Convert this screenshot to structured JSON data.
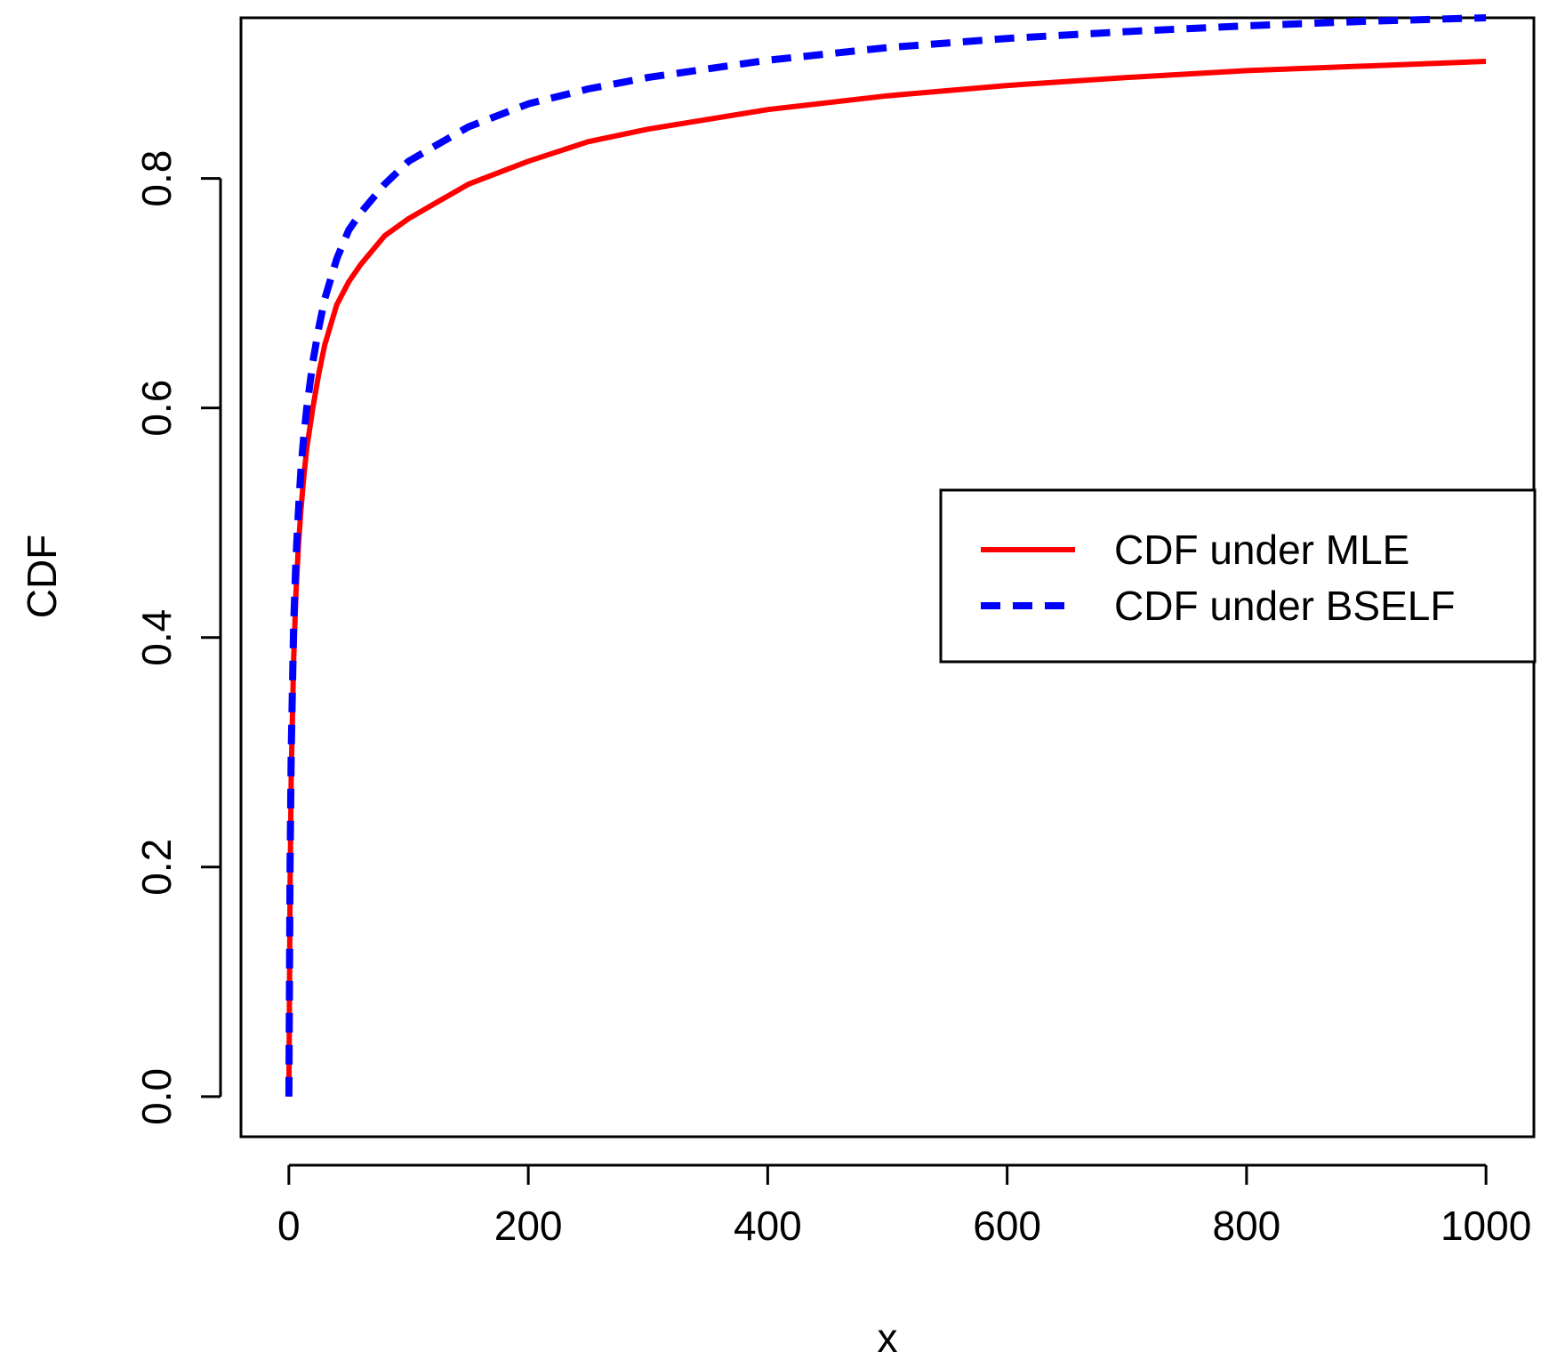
{
  "chart_data": {
    "type": "line",
    "title": "",
    "xlabel": "x",
    "ylabel": "CDF",
    "xlim": [
      -40,
      1040
    ],
    "ylim": [
      -0.035,
      0.94
    ],
    "x_ticks": [
      0,
      200,
      400,
      600,
      800,
      1000
    ],
    "x_tick_labels": [
      "0",
      "200",
      "400",
      "600",
      "800",
      "1000"
    ],
    "y_ticks": [
      0.0,
      0.2,
      0.4,
      0.6,
      0.8
    ],
    "y_tick_labels": [
      "0.0",
      "0.2",
      "0.4",
      "0.6",
      "0.8"
    ],
    "grid": false,
    "legend_position": "right",
    "series": [
      {
        "name": "CDF under MLE",
        "color": "#ff0000",
        "style": "solid",
        "x": [
          0,
          1,
          2,
          4,
          6,
          8,
          10,
          12,
          15,
          20,
          25,
          30,
          40,
          50,
          60,
          80,
          100,
          125,
          150,
          200,
          250,
          300,
          400,
          500,
          600,
          700,
          800,
          900,
          1000
        ],
        "y": [
          0.0,
          0.18,
          0.28,
          0.38,
          0.44,
          0.48,
          0.51,
          0.535,
          0.565,
          0.6,
          0.63,
          0.655,
          0.69,
          0.71,
          0.725,
          0.75,
          0.765,
          0.78,
          0.795,
          0.815,
          0.832,
          0.843,
          0.86,
          0.872,
          0.881,
          0.888,
          0.894,
          0.898,
          0.902
        ]
      },
      {
        "name": "CDF under BSELF",
        "color": "#0000ff",
        "style": "dashed",
        "x": [
          0,
          1,
          2,
          4,
          6,
          8,
          10,
          12,
          15,
          20,
          25,
          30,
          40,
          50,
          60,
          80,
          100,
          125,
          150,
          200,
          250,
          300,
          400,
          500,
          600,
          700,
          800,
          900,
          1000
        ],
        "y": [
          0.0,
          0.2,
          0.3,
          0.41,
          0.47,
          0.51,
          0.545,
          0.57,
          0.6,
          0.64,
          0.67,
          0.695,
          0.73,
          0.755,
          0.77,
          0.795,
          0.815,
          0.83,
          0.845,
          0.865,
          0.878,
          0.888,
          0.903,
          0.914,
          0.922,
          0.928,
          0.933,
          0.937,
          0.94
        ]
      }
    ]
  }
}
